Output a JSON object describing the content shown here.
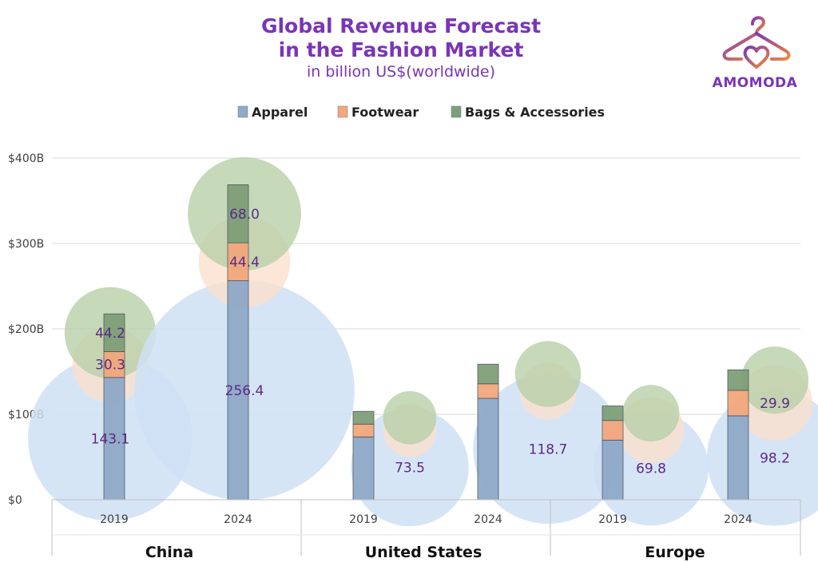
{
  "header": {
    "title_line1": "Global Revenue Forecast",
    "title_line2": "in the Fashion Market",
    "subtitle": "in billion US$(worldwide)"
  },
  "logo": {
    "text": "AMOMODA",
    "icon": "hanger-heart-icon"
  },
  "colors": {
    "Apparel": "#8fa9c8",
    "Footwear": "#f2a77c",
    "Bags & Accessories": "#7f9f78",
    "bubble_apparel": "#cfe0f4",
    "bubble_footwear": "#fbe0cd",
    "bubble_bags": "#b8d0a8",
    "label": "#5b2a86"
  },
  "chart_data": {
    "type": "bar",
    "stacked": true,
    "bubbles": true,
    "yticks": [
      "$0",
      "$100B",
      "$200B",
      "$300B",
      "$400B"
    ],
    "ylim": [
      0,
      400
    ],
    "grid": true,
    "legend_position": "top-center",
    "groups": [
      "China",
      "United States",
      "Europe"
    ],
    "categories": [
      "2019",
      "2024",
      "2019",
      "2024",
      "2019",
      "2024"
    ],
    "series": [
      {
        "name": "Apparel",
        "values": [
          143.1,
          256.4,
          73.5,
          118.7,
          69.8,
          98.2
        ]
      },
      {
        "name": "Footwear",
        "values": [
          30.3,
          44.4,
          15.0,
          17.0,
          23.0,
          29.9
        ]
      },
      {
        "name": "Bags & Accessories",
        "values": [
          44.2,
          68.0,
          15.0,
          23.0,
          17.0,
          24.0
        ]
      }
    ],
    "data_labels": [
      [
        "143.1",
        "256.4",
        "73.5",
        "118.7",
        "69.8",
        "98.2"
      ],
      [
        "30.3",
        "44.4",
        "",
        "",
        "",
        "29.9"
      ],
      [
        "44.2",
        "68.0",
        "",
        "",
        "",
        ""
      ]
    ]
  }
}
